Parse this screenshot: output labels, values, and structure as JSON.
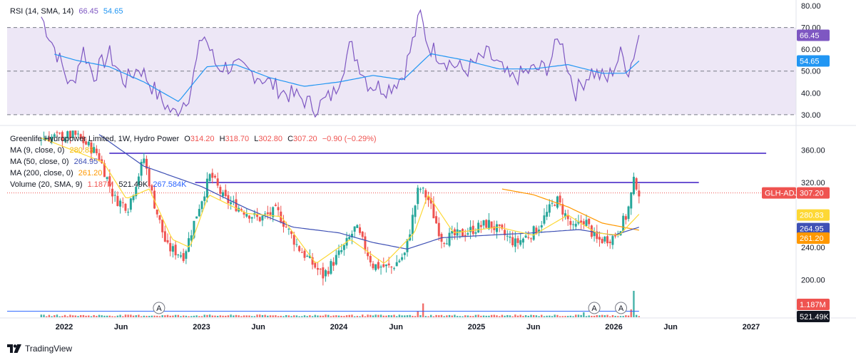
{
  "rsi_legend": {
    "label": "RSI (14, SMA, 14)",
    "rsi": "66.45",
    "sma": "54.65"
  },
  "price_legend": {
    "title": "Greenlife Hydropower Limited, 1W, Hydro Power",
    "o_label": "O",
    "o": "314.20",
    "h_label": "H",
    "h": "318.70",
    "l_label": "L",
    "l": "302.80",
    "c_label": "C",
    "c": "307.20",
    "change": "−0.90 (−0.29%)",
    "ma9": {
      "label": "MA (9, close, 0)",
      "value": "280.83"
    },
    "ma50": {
      "label": "MA (50, close, 0)",
      "value": "264.95"
    },
    "ma200": {
      "label": "MA (200, close, 0)",
      "value": "261.20"
    },
    "volume": {
      "label": "Volume (20, SMA, 9)",
      "v1": "1.187M",
      "v2": "521.49K",
      "v3": "267.584K"
    }
  },
  "badges": {
    "symbol": "GLH-ADJ",
    "close": "307.20",
    "rsi": "66.45",
    "rsi_sma": "54.65",
    "ma9": "280.83",
    "ma50": "264.95",
    "ma200": "261.20",
    "vol": "1.187M",
    "vol_sma": "521.49K"
  },
  "footer": {
    "brand": "TradingView"
  },
  "colors": {
    "rsi": "#7e57c2",
    "rsi_sma": "#2196f3",
    "rsi_band": "#ede7f6",
    "up": "#26a69a",
    "down": "#ef5350",
    "ma9": "#fdd835",
    "ma50": "#3f51b5",
    "ma200": "#ff9800",
    "hline": "#3c1cc4",
    "vol_sma": "#2962ff"
  },
  "chart_data": {
    "type": "candlestick",
    "timeframe": "1W",
    "x_ticks": [
      {
        "label": "2022",
        "date": "2022-01-01"
      },
      {
        "label": "Jun",
        "date": "2022-06-01"
      },
      {
        "label": "2023",
        "date": "2023-01-01"
      },
      {
        "label": "Jun",
        "date": "2023-06-01"
      },
      {
        "label": "2024",
        "date": "2024-01-01"
      },
      {
        "label": "Jun",
        "date": "2024-06-01"
      },
      {
        "label": "2025",
        "date": "2025-01-01"
      },
      {
        "label": "Jun",
        "date": "2025-06-01"
      },
      {
        "label": "2026",
        "date": "2026-01-01"
      },
      {
        "label": "Jun",
        "date": "2026-06-01"
      },
      {
        "label": "2027",
        "date": "2027-01-01"
      }
    ],
    "price_axis": {
      "ticks": [
        "360.00",
        "320.00",
        "280.00",
        "240.00",
        "200.00"
      ],
      "ylim": [
        190,
        385
      ]
    },
    "rsi_axis": {
      "ticks": [
        "80.00",
        "70.00",
        "60.00",
        "50.00",
        "40.00",
        "30.00"
      ],
      "ylim": [
        27,
        81
      ],
      "band": [
        30,
        70
      ]
    },
    "horizontal_lines": [
      {
        "price": 356,
        "from": "2022-05-01",
        "to": "2027-02-10"
      },
      {
        "price": 320,
        "from": "2022-12-15",
        "to": "2026-08-15"
      }
    ],
    "close_line": 307.2,
    "price_anchors": [
      [
        "2021-11-01",
        375
      ],
      [
        "2022-02-01",
        378
      ],
      [
        "2022-04-01",
        355
      ],
      [
        "2022-05-15",
        300
      ],
      [
        "2022-06-20",
        290
      ],
      [
        "2022-08-01",
        350
      ],
      [
        "2022-08-25",
        300
      ],
      [
        "2022-10-01",
        240
      ],
      [
        "2022-11-15",
        230
      ],
      [
        "2022-12-25",
        290
      ],
      [
        "2023-01-25",
        330
      ],
      [
        "2023-03-01",
        300
      ],
      [
        "2023-06-01",
        275
      ],
      [
        "2023-07-20",
        285
      ],
      [
        "2023-09-15",
        240
      ],
      [
        "2023-11-20",
        205
      ],
      [
        "2024-01-15",
        240
      ],
      [
        "2024-02-15",
        265
      ],
      [
        "2024-04-01",
        218
      ],
      [
        "2024-05-20",
        215
      ],
      [
        "2024-06-25",
        232
      ],
      [
        "2024-08-01",
        315
      ],
      [
        "2024-08-25",
        300
      ],
      [
        "2024-10-01",
        250
      ],
      [
        "2024-12-01",
        258
      ],
      [
        "2025-02-01",
        270
      ],
      [
        "2025-04-15",
        245
      ],
      [
        "2025-06-10",
        262
      ],
      [
        "2025-08-01",
        300
      ],
      [
        "2025-09-15",
        262
      ],
      [
        "2025-10-15",
        275
      ],
      [
        "2025-11-15",
        248
      ],
      [
        "2026-01-01",
        253
      ],
      [
        "2026-02-05",
        280
      ],
      [
        "2026-02-25",
        325
      ],
      [
        "2026-03-09",
        307.2
      ]
    ],
    "ma9_anchors": [
      [
        "2021-11-01",
        375
      ],
      [
        "2022-04-15",
        345
      ],
      [
        "2022-06-15",
        300
      ],
      [
        "2022-08-15",
        312
      ],
      [
        "2022-10-15",
        250
      ],
      [
        "2022-12-01",
        240
      ],
      [
        "2023-01-20",
        305
      ],
      [
        "2023-05-01",
        282
      ],
      [
        "2023-08-01",
        278
      ],
      [
        "2023-11-01",
        220
      ],
      [
        "2024-02-01",
        250
      ],
      [
        "2024-05-01",
        220
      ],
      [
        "2024-07-20",
        258
      ],
      [
        "2024-08-25",
        305
      ],
      [
        "2024-11-01",
        258
      ],
      [
        "2025-03-01",
        265
      ],
      [
        "2025-06-01",
        255
      ],
      [
        "2025-09-01",
        280
      ],
      [
        "2025-11-15",
        258
      ],
      [
        "2026-01-15",
        255
      ],
      [
        "2026-03-09",
        280.83
      ]
    ],
    "ma50_anchors": [
      [
        "2022-04-01",
        380
      ],
      [
        "2022-08-01",
        340
      ],
      [
        "2023-01-01",
        315
      ],
      [
        "2023-05-01",
        288
      ],
      [
        "2023-09-01",
        265
      ],
      [
        "2024-01-01",
        258
      ],
      [
        "2024-04-01",
        246
      ],
      [
        "2024-07-01",
        238
      ],
      [
        "2024-10-01",
        252
      ],
      [
        "2025-02-01",
        255
      ],
      [
        "2025-06-01",
        258
      ],
      [
        "2025-10-01",
        262
      ],
      [
        "2026-01-01",
        255
      ],
      [
        "2026-03-09",
        264.95
      ]
    ],
    "ma200_anchors": [
      [
        "2025-03-10",
        312
      ],
      [
        "2025-06-01",
        305
      ],
      [
        "2025-09-01",
        290
      ],
      [
        "2025-12-01",
        270
      ],
      [
        "2026-03-09",
        261.2
      ]
    ],
    "rsi_anchors": [
      [
        "2021-11-01",
        75
      ],
      [
        "2021-12-20",
        55
      ],
      [
        "2022-01-20",
        42
      ],
      [
        "2022-02-20",
        60
      ],
      [
        "2022-03-20",
        48
      ],
      [
        "2022-05-01",
        58
      ],
      [
        "2022-06-10",
        45
      ],
      [
        "2022-07-20",
        52
      ],
      [
        "2022-09-10",
        38
      ],
      [
        "2022-10-20",
        30
      ],
      [
        "2022-12-01",
        40
      ],
      [
        "2023-01-05",
        68
      ],
      [
        "2023-02-10",
        52
      ],
      [
        "2023-04-01",
        52
      ],
      [
        "2023-06-01",
        48
      ],
      [
        "2023-08-10",
        40
      ],
      [
        "2023-09-20",
        38
      ],
      [
        "2023-11-01",
        33
      ],
      [
        "2023-12-20",
        40
      ],
      [
        "2024-02-01",
        62
      ],
      [
        "2024-03-20",
        44
      ],
      [
        "2024-05-10",
        42
      ],
      [
        "2024-06-20",
        48
      ],
      [
        "2024-08-05",
        76
      ],
      [
        "2024-08-25",
        62
      ],
      [
        "2024-10-01",
        56
      ],
      [
        "2024-12-01",
        50
      ],
      [
        "2025-02-01",
        58
      ],
      [
        "2025-04-01",
        46
      ],
      [
        "2025-05-20",
        50
      ],
      [
        "2025-07-10",
        52
      ],
      [
        "2025-08-10",
        66
      ],
      [
        "2025-09-20",
        40
      ],
      [
        "2025-11-01",
        50
      ],
      [
        "2025-12-15",
        46
      ],
      [
        "2026-01-20",
        58
      ],
      [
        "2026-02-10",
        50
      ],
      [
        "2026-03-09",
        66.45
      ]
    ],
    "rsi_sma_anchors": [
      [
        "2021-12-01",
        58
      ],
      [
        "2022-02-01",
        55
      ],
      [
        "2022-05-01",
        52
      ],
      [
        "2022-08-01",
        45
      ],
      [
        "2022-11-01",
        36
      ],
      [
        "2023-01-15",
        52
      ],
      [
        "2023-04-01",
        53
      ],
      [
        "2023-07-01",
        47
      ],
      [
        "2023-10-01",
        43
      ],
      [
        "2024-01-01",
        45
      ],
      [
        "2024-04-01",
        48
      ],
      [
        "2024-06-20",
        46
      ],
      [
        "2024-09-01",
        58
      ],
      [
        "2024-12-01",
        55
      ],
      [
        "2025-03-01",
        51
      ],
      [
        "2025-06-01",
        51
      ],
      [
        "2025-09-01",
        53
      ],
      [
        "2025-12-01",
        49
      ],
      [
        "2026-02-01",
        49
      ],
      [
        "2026-03-09",
        54.65
      ]
    ],
    "volume_spikes": [
      [
        "2026-02-25",
        1.187
      ],
      [
        "2024-08-15",
        0.62
      ],
      [
        "2026-02-15",
        0.35
      ],
      [
        "2024-08-01",
        0.28
      ],
      [
        "2025-10-10",
        0.22
      ]
    ],
    "volume_sma": 0.268,
    "annotations": [
      {
        "label": "A",
        "date": "2022-09-10"
      },
      {
        "label": "A",
        "date": "2025-11-10"
      },
      {
        "label": "A",
        "date": "2026-01-20"
      }
    ]
  }
}
